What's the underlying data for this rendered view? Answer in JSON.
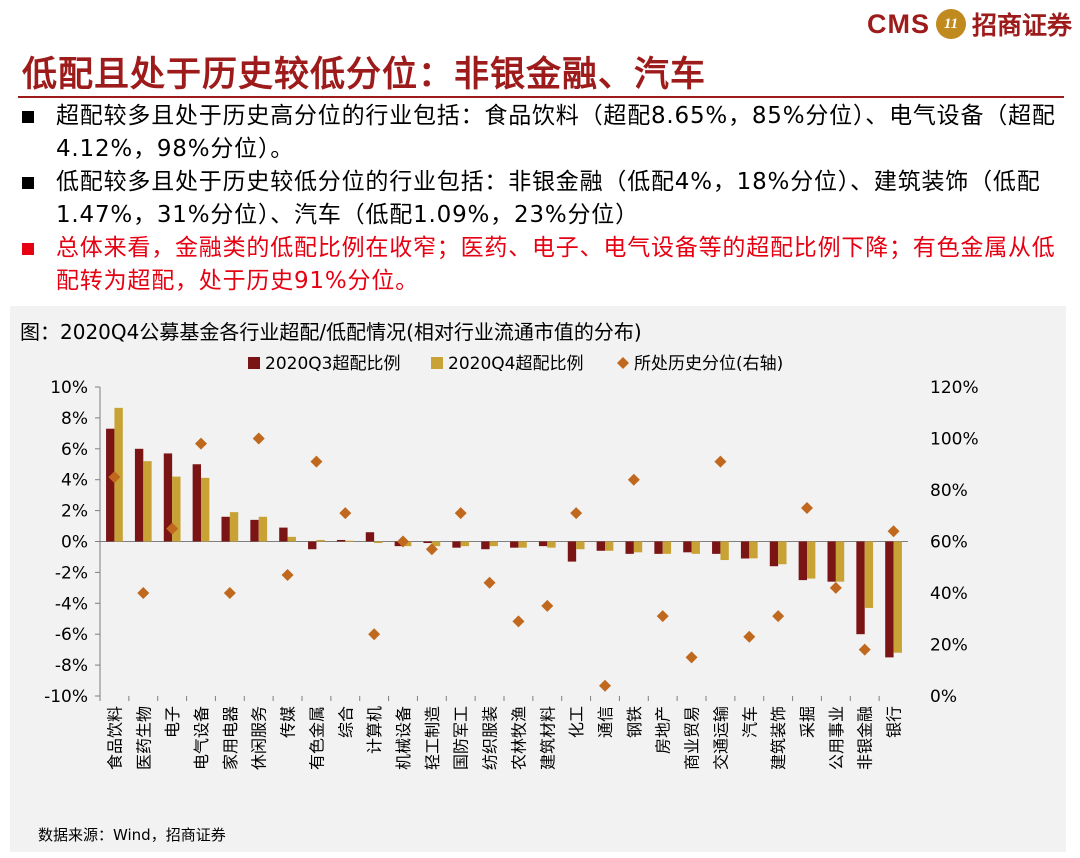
{
  "header": {
    "logo_text": "CMS",
    "logo_mark": "11",
    "logo_cn": "招商证券",
    "title": "低配且处于历史较低分位：非银金融、汽车"
  },
  "bullets": [
    {
      "text": "超配较多且处于历史高分位的行业包括：食品饮料（超配8.65%，85%分位）、电气设备（超配4.12%，98%分位）。",
      "color": "#000000"
    },
    {
      "text": "低配较多且处于历史较低分位的行业包括：非银金融（低配4%，18%分位）、建筑装饰（低配1.47%，31%分位）、汽车（低配1.09%，23%分位）",
      "color": "#000000"
    },
    {
      "text": "总体来看，金融类的低配比例在收窄；医药、电子、电气设备等的超配比例下降；有色金属从低配转为超配，处于历史91%分位。",
      "color": "#e60012"
    }
  ],
  "chart_title": "图：2020Q4公募基金各行业超配/低配情况(相对行业流通市值的分布)",
  "source": "数据来源：Wind，招商证券",
  "chart_data": {
    "type": "bar",
    "categories": [
      "食品饮料",
      "医药生物",
      "电子",
      "电气设备",
      "家用电器",
      "休闲服务",
      "传媒",
      "有色金属",
      "综合",
      "计算机",
      "机械设备",
      "轻工制造",
      "国防军工",
      "纺织服装",
      "农林牧渔",
      "建筑材料",
      "化工",
      "通信",
      "钢铁",
      "房地产",
      "商业贸易",
      "交通运输",
      "汽车",
      "建筑装饰",
      "采掘",
      "公用事业",
      "非银金融",
      "银行"
    ],
    "series": [
      {
        "name": "2020Q3超配比例",
        "type": "bar",
        "color": "#7b1414",
        "values": [
          7.3,
          6.0,
          5.7,
          5.0,
          1.6,
          1.4,
          0.9,
          -0.5,
          0.1,
          0.6,
          -0.3,
          -0.1,
          -0.4,
          -0.5,
          -0.4,
          -0.3,
          -1.3,
          -0.6,
          -0.8,
          -0.8,
          -0.7,
          -0.8,
          -1.1,
          -1.6,
          -2.5,
          -2.6,
          -6.0,
          -7.5
        ]
      },
      {
        "name": "2020Q4超配比例",
        "type": "bar",
        "color": "#c8a235",
        "values": [
          8.65,
          5.2,
          4.2,
          4.12,
          1.9,
          1.6,
          0.3,
          0.1,
          0.05,
          -0.1,
          -0.3,
          -0.3,
          -0.3,
          -0.3,
          -0.4,
          -0.4,
          -0.5,
          -0.6,
          -0.7,
          -0.8,
          -0.8,
          -1.2,
          -1.09,
          -1.47,
          -2.4,
          -2.6,
          -4.3,
          -7.2
        ]
      },
      {
        "name": "所处历史分位(右轴)",
        "type": "scatter",
        "axis": "right",
        "color": "#c0691e",
        "values": [
          85,
          40,
          65,
          98,
          40,
          100,
          47,
          91,
          71,
          24,
          60,
          57,
          71,
          44,
          29,
          35,
          71,
          4,
          84,
          31,
          15,
          91,
          23,
          31,
          73,
          42,
          18,
          64
        ]
      }
    ],
    "ylim": [
      -10,
      10
    ],
    "yticks": [
      "10%",
      "8%",
      "6%",
      "4%",
      "2%",
      "0%",
      "-2%",
      "-4%",
      "-6%",
      "-8%",
      "-10%"
    ],
    "y2lim": [
      0,
      120
    ],
    "y2ticks": [
      "120%",
      "100%",
      "80%",
      "60%",
      "40%",
      "20%",
      "0%"
    ],
    "legend_position": "top"
  }
}
